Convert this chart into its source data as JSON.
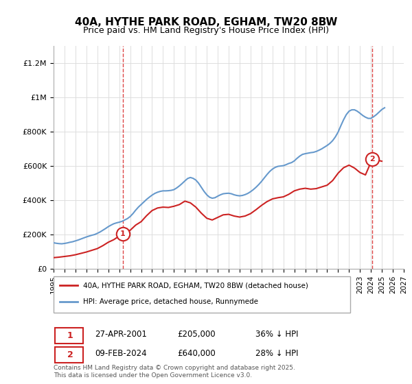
{
  "title": "40A, HYTHE PARK ROAD, EGHAM, TW20 8BW",
  "subtitle": "Price paid vs. HM Land Registry's House Price Index (HPI)",
  "xlabel": "",
  "ylabel": "",
  "ylim": [
    0,
    1300000
  ],
  "xlim_start": 1995.0,
  "xlim_end": 2027.0,
  "yticks": [
    0,
    200000,
    400000,
    600000,
    800000,
    1000000,
    1200000
  ],
  "ytick_labels": [
    "£0",
    "£200K",
    "£400K",
    "£600K",
    "£800K",
    "£1M",
    "£1.2M"
  ],
  "xticks": [
    1995,
    1996,
    1997,
    1998,
    1999,
    2000,
    2001,
    2002,
    2003,
    2004,
    2005,
    2006,
    2007,
    2008,
    2009,
    2010,
    2011,
    2012,
    2013,
    2014,
    2015,
    2016,
    2017,
    2018,
    2019,
    2020,
    2021,
    2022,
    2023,
    2024,
    2025,
    2026,
    2027
  ],
  "sale1_year": 2001.32,
  "sale1_price": 205000,
  "sale1_label": "1",
  "sale1_date": "27-APR-2001",
  "sale1_amount": "£205,000",
  "sale1_hpi": "36% ↓ HPI",
  "sale2_year": 2024.12,
  "sale2_price": 640000,
  "sale2_label": "2",
  "sale2_date": "09-FEB-2024",
  "sale2_amount": "£640,000",
  "sale2_hpi": "28% ↓ HPI",
  "hpi_line_color": "#6699cc",
  "price_line_color": "#cc2222",
  "sale_marker_color": "#cc2222",
  "dashed_line_color": "#dd4444",
  "legend_label_red": "40A, HYTHE PARK ROAD, EGHAM, TW20 8BW (detached house)",
  "legend_label_blue": "HPI: Average price, detached house, Runnymede",
  "footer": "Contains HM Land Registry data © Crown copyright and database right 2025.\nThis data is licensed under the Open Government Licence v3.0.",
  "background_color": "#ffffff",
  "grid_color": "#dddddd",
  "hpi_years": [
    1995.0,
    1995.25,
    1995.5,
    1995.75,
    1996.0,
    1996.25,
    1996.5,
    1996.75,
    1997.0,
    1997.25,
    1997.5,
    1997.75,
    1998.0,
    1998.25,
    1998.5,
    1998.75,
    1999.0,
    1999.25,
    1999.5,
    1999.75,
    2000.0,
    2000.25,
    2000.5,
    2000.75,
    2001.0,
    2001.25,
    2001.5,
    2001.75,
    2002.0,
    2002.25,
    2002.5,
    2002.75,
    2003.0,
    2003.25,
    2003.5,
    2003.75,
    2004.0,
    2004.25,
    2004.5,
    2004.75,
    2005.0,
    2005.25,
    2005.5,
    2005.75,
    2006.0,
    2006.25,
    2006.5,
    2006.75,
    2007.0,
    2007.25,
    2007.5,
    2007.75,
    2008.0,
    2008.25,
    2008.5,
    2008.75,
    2009.0,
    2009.25,
    2009.5,
    2009.75,
    2010.0,
    2010.25,
    2010.5,
    2010.75,
    2011.0,
    2011.25,
    2011.5,
    2011.75,
    2012.0,
    2012.25,
    2012.5,
    2012.75,
    2013.0,
    2013.25,
    2013.5,
    2013.75,
    2014.0,
    2014.25,
    2014.5,
    2014.75,
    2015.0,
    2015.25,
    2015.5,
    2015.75,
    2016.0,
    2016.25,
    2016.5,
    2016.75,
    2017.0,
    2017.25,
    2017.5,
    2017.75,
    2018.0,
    2018.25,
    2018.5,
    2018.75,
    2019.0,
    2019.25,
    2019.5,
    2019.75,
    2020.0,
    2020.25,
    2020.5,
    2020.75,
    2021.0,
    2021.25,
    2021.5,
    2021.75,
    2022.0,
    2022.25,
    2022.5,
    2022.75,
    2023.0,
    2023.25,
    2023.5,
    2023.75,
    2024.0,
    2024.25,
    2024.5,
    2024.75,
    2025.0,
    2025.25
  ],
  "hpi_values": [
    152000,
    149000,
    147000,
    146000,
    148000,
    151000,
    155000,
    158000,
    163000,
    168000,
    174000,
    180000,
    186000,
    191000,
    196000,
    200000,
    207000,
    215000,
    225000,
    235000,
    246000,
    255000,
    263000,
    268000,
    272000,
    277000,
    285000,
    293000,
    305000,
    322000,
    342000,
    360000,
    375000,
    390000,
    405000,
    418000,
    430000,
    440000,
    447000,
    452000,
    455000,
    455000,
    456000,
    458000,
    462000,
    472000,
    484000,
    498000,
    513000,
    527000,
    533000,
    528000,
    518000,
    500000,
    476000,
    452000,
    432000,
    418000,
    412000,
    415000,
    424000,
    432000,
    438000,
    440000,
    441000,
    438000,
    432000,
    428000,
    426000,
    428000,
    433000,
    440000,
    450000,
    462000,
    476000,
    492000,
    510000,
    530000,
    550000,
    568000,
    582000,
    592000,
    598000,
    600000,
    602000,
    608000,
    615000,
    620000,
    630000,
    645000,
    658000,
    668000,
    672000,
    675000,
    678000,
    680000,
    685000,
    692000,
    700000,
    710000,
    720000,
    732000,
    748000,
    770000,
    798000,
    835000,
    870000,
    900000,
    920000,
    928000,
    928000,
    920000,
    908000,
    895000,
    885000,
    878000,
    878000,
    888000,
    900000,
    915000,
    930000,
    940000
  ],
  "price_years": [
    1995.0,
    1995.5,
    1996.0,
    1996.5,
    1997.0,
    1997.5,
    1998.0,
    1998.5,
    1999.0,
    1999.5,
    2000.0,
    2000.5,
    2001.32,
    2002.0,
    2002.5,
    2003.0,
    2003.5,
    2004.0,
    2004.5,
    2005.0,
    2005.5,
    2006.0,
    2006.5,
    2007.0,
    2007.5,
    2008.0,
    2008.5,
    2009.0,
    2009.5,
    2010.0,
    2010.5,
    2011.0,
    2011.5,
    2012.0,
    2012.5,
    2013.0,
    2013.5,
    2014.0,
    2014.5,
    2015.0,
    2015.5,
    2016.0,
    2016.5,
    2017.0,
    2017.5,
    2018.0,
    2018.5,
    2019.0,
    2019.5,
    2020.0,
    2020.5,
    2021.0,
    2021.5,
    2022.0,
    2022.5,
    2023.0,
    2023.5,
    2024.12,
    2024.5,
    2025.0
  ],
  "price_values": [
    65000,
    68000,
    72000,
    76000,
    82000,
    90000,
    98000,
    108000,
    118000,
    135000,
    155000,
    170000,
    205000,
    225000,
    255000,
    275000,
    310000,
    340000,
    355000,
    360000,
    358000,
    365000,
    375000,
    395000,
    385000,
    360000,
    325000,
    295000,
    285000,
    300000,
    315000,
    318000,
    308000,
    302000,
    308000,
    322000,
    345000,
    370000,
    392000,
    408000,
    415000,
    420000,
    435000,
    455000,
    465000,
    470000,
    465000,
    468000,
    478000,
    488000,
    515000,
    558000,
    590000,
    605000,
    588000,
    562000,
    548000,
    640000,
    635000,
    628000
  ]
}
